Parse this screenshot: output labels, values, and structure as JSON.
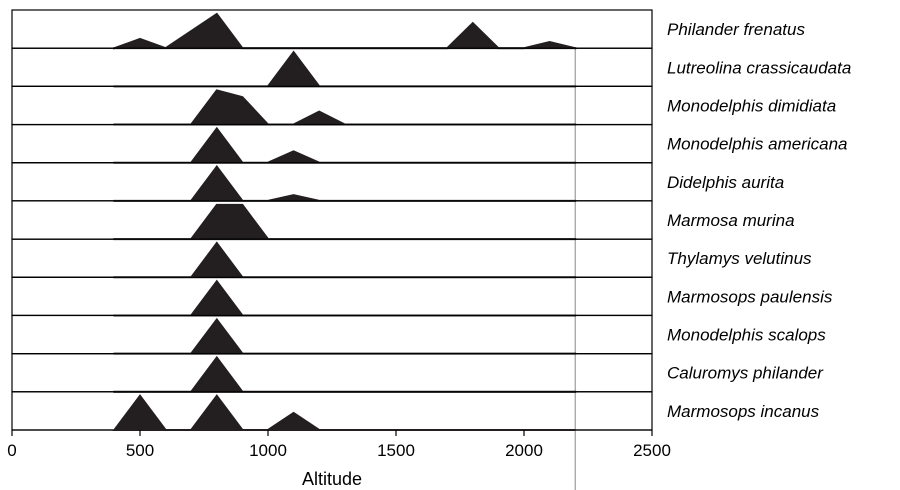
{
  "chart_data": {
    "type": "area",
    "title": "",
    "xlabel": "Altitude",
    "ylabel": "",
    "xlim": [
      0,
      2500
    ],
    "x_ticks": [
      "0",
      "500",
      "1000",
      "1500",
      "2000",
      "2500"
    ],
    "x_tick_values": [
      0,
      500,
      1000,
      1500,
      2000,
      2500
    ],
    "grid": false,
    "legend": "right",
    "fill_color": "#231f20",
    "series": [
      {
        "name": "Philander frenatus",
        "points": [
          [
            400,
            0
          ],
          [
            500,
            0.27
          ],
          [
            600,
            0
          ],
          [
            800,
            1
          ],
          [
            900,
            0
          ],
          [
            1700,
            0
          ],
          [
            1800,
            0.73
          ],
          [
            1900,
            0
          ],
          [
            2000,
            0
          ],
          [
            2100,
            0.18
          ],
          [
            2200,
            0
          ]
        ]
      },
      {
        "name": "Lutreolina crassicaudata",
        "points": [
          [
            400,
            0
          ],
          [
            1000,
            0
          ],
          [
            1100,
            1
          ],
          [
            1200,
            0
          ],
          [
            2200,
            0
          ]
        ]
      },
      {
        "name": "Monodelphis dimidiata",
        "points": [
          [
            400,
            0
          ],
          [
            700,
            0
          ],
          [
            800,
            1
          ],
          [
            900,
            0.8
          ],
          [
            1000,
            0
          ],
          [
            1100,
            0
          ],
          [
            1200,
            0.38
          ],
          [
            1300,
            0
          ],
          [
            2200,
            0
          ]
        ]
      },
      {
        "name": "Monodelphis americana",
        "points": [
          [
            400,
            0
          ],
          [
            700,
            0
          ],
          [
            800,
            1
          ],
          [
            900,
            0
          ],
          [
            1000,
            0
          ],
          [
            1100,
            0.33
          ],
          [
            1200,
            0
          ],
          [
            2200,
            0
          ]
        ]
      },
      {
        "name": "Didelphis aurita",
        "points": [
          [
            400,
            0
          ],
          [
            700,
            0
          ],
          [
            800,
            1
          ],
          [
            900,
            0
          ],
          [
            1000,
            0
          ],
          [
            1100,
            0.17
          ],
          [
            1200,
            0
          ],
          [
            2200,
            0
          ]
        ]
      },
      {
        "name": "Marmosa murina",
        "points": [
          [
            400,
            0
          ],
          [
            700,
            0
          ],
          [
            800,
            1
          ],
          [
            900,
            1
          ],
          [
            1000,
            0
          ],
          [
            2200,
            0
          ]
        ]
      },
      {
        "name": "Thylamys velutinus",
        "points": [
          [
            400,
            0
          ],
          [
            700,
            0
          ],
          [
            800,
            1
          ],
          [
            900,
            0
          ],
          [
            2200,
            0
          ]
        ]
      },
      {
        "name": "Marmosops paulensis",
        "points": [
          [
            400,
            0
          ],
          [
            700,
            0
          ],
          [
            800,
            1
          ],
          [
            900,
            0
          ],
          [
            2200,
            0
          ]
        ]
      },
      {
        "name": "Monodelphis scalops",
        "points": [
          [
            400,
            0
          ],
          [
            700,
            0
          ],
          [
            800,
            1
          ],
          [
            900,
            0
          ],
          [
            2200,
            0
          ]
        ]
      },
      {
        "name": "Caluromys philander",
        "points": [
          [
            400,
            0
          ],
          [
            700,
            0
          ],
          [
            800,
            1
          ],
          [
            900,
            0
          ],
          [
            2200,
            0
          ]
        ]
      },
      {
        "name": "Marmosops incanus",
        "points": [
          [
            400,
            0
          ],
          [
            500,
            1
          ],
          [
            600,
            0
          ],
          [
            700,
            0
          ],
          [
            800,
            1
          ],
          [
            900,
            0
          ],
          [
            1000,
            0
          ],
          [
            1100,
            0.5
          ],
          [
            1200,
            0
          ],
          [
            2200,
            0
          ]
        ]
      }
    ]
  }
}
